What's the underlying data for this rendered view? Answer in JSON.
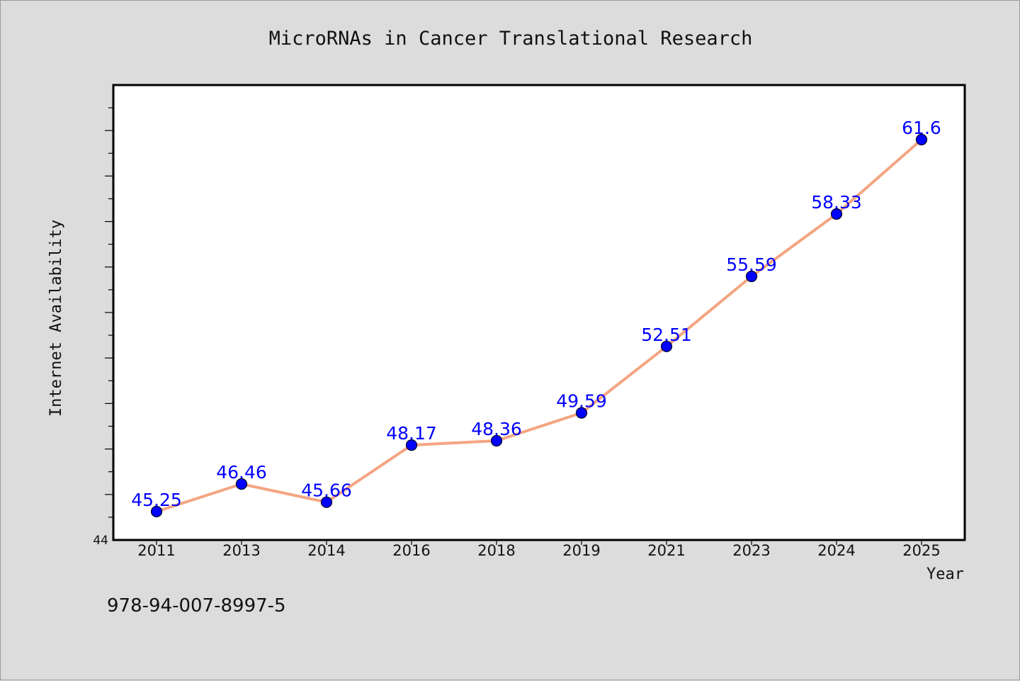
{
  "chart_data": {
    "type": "line",
    "title": "MicroRNAs in Cancer Translational Research",
    "xlabel": "Year",
    "ylabel": "Internet Availability",
    "categories": [
      "2011",
      "2013",
      "2014",
      "2016",
      "2018",
      "2019",
      "2021",
      "2023",
      "2024",
      "2025"
    ],
    "series": [
      {
        "values": [
          45.25,
          46.46,
          45.66,
          48.17,
          48.36,
          49.59,
          52.51,
          55.59,
          58.33,
          61.6
        ],
        "data_labels": [
          "45.25",
          "46.46",
          "45.66",
          "48.17",
          "48.36",
          "49.59",
          "52.51",
          "55.59",
          "58.33",
          "61.6"
        ]
      }
    ],
    "ylim": [
      44,
      64
    ],
    "y_tick_labels": [
      "44"
    ],
    "grid": false,
    "legend": "none",
    "colors": {
      "line": "#f4a582",
      "marker": "#0000ff",
      "label": "#0000ff",
      "plot_bg": "#ffffff",
      "page_bg": "#dcdcdc"
    }
  },
  "footer": {
    "isbn": "978-94-007-8997-5"
  }
}
